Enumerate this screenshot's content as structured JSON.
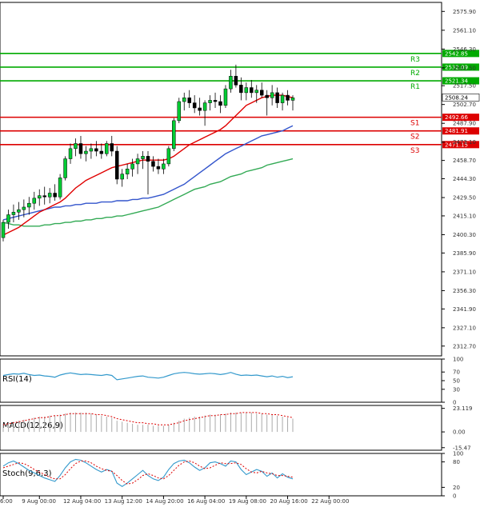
{
  "chart_data": {
    "type": "candlestick",
    "price_axis": {
      "ylim": [
        2305.0,
        2583.0
      ],
      "ticks": [
        "2575.90",
        "2561.10",
        "2546.30",
        "2531.50",
        "2517.50",
        "2502.70",
        "2487.90",
        "2473.10",
        "2458.70",
        "2444.30",
        "2429.50",
        "2415.10",
        "2400.30",
        "2385.90",
        "2371.10",
        "2356.30",
        "2341.90",
        "2327.10",
        "2312.70"
      ],
      "tick_values": [
        2575.9,
        2561.1,
        2546.3,
        2531.5,
        2517.5,
        2502.7,
        2487.9,
        2473.1,
        2458.7,
        2444.3,
        2429.5,
        2415.1,
        2400.3,
        2385.9,
        2371.1,
        2356.3,
        2341.9,
        2327.1,
        2312.7
      ],
      "current_price_label": "2508.24",
      "current_price": 2508.24
    },
    "x_axis": {
      "labels": [
        "6:00",
        "9 Aug 00:00",
        "12 Aug 04:00",
        "13 Aug 12:00",
        "14 Aug 20:00",
        "16 Aug 04:00",
        "19 Aug 08:00",
        "20 Aug 16:00",
        "22 Aug 00:00"
      ],
      "label_indices": [
        0,
        7,
        15,
        23,
        31,
        39,
        47,
        55,
        63
      ]
    },
    "levels": [
      {
        "name": "R3",
        "value": 2542.85,
        "label": "2542.85",
        "color": "#00aa00"
      },
      {
        "name": "R2",
        "value": 2532.09,
        "label": "2532.09",
        "color": "#00aa00"
      },
      {
        "name": "R1",
        "value": 2521.34,
        "label": "2521.34",
        "color": "#00aa00"
      },
      {
        "name": "S1",
        "value": 2492.66,
        "label": "2492.66",
        "color": "#dd0000"
      },
      {
        "name": "S2",
        "value": 2481.91,
        "label": "2481.91",
        "color": "#dd0000"
      },
      {
        "name": "S3",
        "value": 2471.15,
        "label": "2471.15",
        "color": "#dd0000"
      }
    ],
    "candles": [
      {
        "o": 2398,
        "h": 2412,
        "l": 2395,
        "c": 2410
      },
      {
        "o": 2410,
        "h": 2420,
        "l": 2405,
        "c": 2416
      },
      {
        "o": 2416,
        "h": 2424,
        "l": 2410,
        "c": 2418
      },
      {
        "o": 2418,
        "h": 2426,
        "l": 2412,
        "c": 2420
      },
      {
        "o": 2420,
        "h": 2428,
        "l": 2414,
        "c": 2422
      },
      {
        "o": 2422,
        "h": 2430,
        "l": 2416,
        "c": 2425
      },
      {
        "o": 2425,
        "h": 2434,
        "l": 2420,
        "c": 2429
      },
      {
        "o": 2429,
        "h": 2436,
        "l": 2423,
        "c": 2431
      },
      {
        "o": 2431,
        "h": 2438,
        "l": 2424,
        "c": 2430
      },
      {
        "o": 2430,
        "h": 2437,
        "l": 2425,
        "c": 2433
      },
      {
        "o": 2433,
        "h": 2440,
        "l": 2427,
        "c": 2430
      },
      {
        "o": 2430,
        "h": 2448,
        "l": 2428,
        "c": 2445
      },
      {
        "o": 2445,
        "h": 2462,
        "l": 2443,
        "c": 2460
      },
      {
        "o": 2460,
        "h": 2472,
        "l": 2456,
        "c": 2468
      },
      {
        "o": 2468,
        "h": 2476,
        "l": 2462,
        "c": 2472
      },
      {
        "o": 2472,
        "h": 2478,
        "l": 2460,
        "c": 2464
      },
      {
        "o": 2464,
        "h": 2470,
        "l": 2458,
        "c": 2466
      },
      {
        "o": 2466,
        "h": 2472,
        "l": 2460,
        "c": 2468
      },
      {
        "o": 2468,
        "h": 2474,
        "l": 2462,
        "c": 2466
      },
      {
        "o": 2466,
        "h": 2472,
        "l": 2460,
        "c": 2464
      },
      {
        "o": 2464,
        "h": 2474,
        "l": 2462,
        "c": 2472
      },
      {
        "o": 2472,
        "h": 2478,
        "l": 2462,
        "c": 2466
      },
      {
        "o": 2466,
        "h": 2470,
        "l": 2440,
        "c": 2444
      },
      {
        "o": 2444,
        "h": 2452,
        "l": 2438,
        "c": 2448
      },
      {
        "o": 2448,
        "h": 2456,
        "l": 2444,
        "c": 2452
      },
      {
        "o": 2452,
        "h": 2460,
        "l": 2446,
        "c": 2456
      },
      {
        "o": 2456,
        "h": 2464,
        "l": 2448,
        "c": 2460
      },
      {
        "o": 2460,
        "h": 2466,
        "l": 2452,
        "c": 2462
      },
      {
        "o": 2462,
        "h": 2466,
        "l": 2432,
        "c": 2458
      },
      {
        "o": 2458,
        "h": 2462,
        "l": 2450,
        "c": 2454
      },
      {
        "o": 2454,
        "h": 2460,
        "l": 2448,
        "c": 2452
      },
      {
        "o": 2452,
        "h": 2460,
        "l": 2448,
        "c": 2456
      },
      {
        "o": 2456,
        "h": 2470,
        "l": 2454,
        "c": 2468
      },
      {
        "o": 2468,
        "h": 2492,
        "l": 2466,
        "c": 2490
      },
      {
        "o": 2490,
        "h": 2508,
        "l": 2488,
        "c": 2505
      },
      {
        "o": 2505,
        "h": 2512,
        "l": 2498,
        "c": 2508
      },
      {
        "o": 2508,
        "h": 2514,
        "l": 2500,
        "c": 2504
      },
      {
        "o": 2504,
        "h": 2510,
        "l": 2496,
        "c": 2500
      },
      {
        "o": 2500,
        "h": 2508,
        "l": 2494,
        "c": 2498
      },
      {
        "o": 2498,
        "h": 2506,
        "l": 2486,
        "c": 2504
      },
      {
        "o": 2504,
        "h": 2510,
        "l": 2498,
        "c": 2506
      },
      {
        "o": 2506,
        "h": 2512,
        "l": 2500,
        "c": 2505
      },
      {
        "o": 2505,
        "h": 2510,
        "l": 2496,
        "c": 2502
      },
      {
        "o": 2502,
        "h": 2518,
        "l": 2500,
        "c": 2515
      },
      {
        "o": 2515,
        "h": 2530,
        "l": 2512,
        "c": 2525
      },
      {
        "o": 2525,
        "h": 2534,
        "l": 2516,
        "c": 2518
      },
      {
        "o": 2518,
        "h": 2524,
        "l": 2506,
        "c": 2512
      },
      {
        "o": 2512,
        "h": 2520,
        "l": 2506,
        "c": 2516
      },
      {
        "o": 2516,
        "h": 2522,
        "l": 2508,
        "c": 2512
      },
      {
        "o": 2512,
        "h": 2518,
        "l": 2504,
        "c": 2514
      },
      {
        "o": 2514,
        "h": 2520,
        "l": 2508,
        "c": 2510
      },
      {
        "o": 2510,
        "h": 2514,
        "l": 2494,
        "c": 2508
      },
      {
        "o": 2508,
        "h": 2518,
        "l": 2502,
        "c": 2512
      },
      {
        "o": 2512,
        "h": 2516,
        "l": 2500,
        "c": 2504
      },
      {
        "o": 2504,
        "h": 2512,
        "l": 2498,
        "c": 2510
      },
      {
        "o": 2510,
        "h": 2514,
        "l": 2502,
        "c": 2506
      },
      {
        "o": 2506,
        "h": 2510,
        "l": 2498,
        "c": 2508
      }
    ],
    "ma_fast": {
      "color": "#e00000",
      "values": [
        2400,
        2402,
        2404,
        2406,
        2409,
        2412,
        2415,
        2418,
        2420,
        2422,
        2424,
        2426,
        2429,
        2433,
        2437,
        2440,
        2443,
        2445,
        2447,
        2449,
        2451,
        2453,
        2454,
        2455,
        2456,
        2457,
        2458,
        2459,
        2459,
        2459,
        2459,
        2459,
        2460,
        2462,
        2465,
        2468,
        2471,
        2473,
        2475,
        2477,
        2479,
        2481,
        2483,
        2486,
        2490,
        2494,
        2498,
        2502,
        2504,
        2506,
        2508,
        2509,
        2510,
        2510,
        2510,
        2509,
        2508
      ]
    },
    "ma_mid": {
      "color": "#3355cc",
      "values": [
        2412,
        2413,
        2414,
        2415,
        2416,
        2417,
        2418,
        2419,
        2420,
        2421,
        2422,
        2422,
        2423,
        2423,
        2424,
        2424,
        2425,
        2425,
        2425,
        2426,
        2426,
        2426,
        2427,
        2427,
        2427,
        2428,
        2428,
        2429,
        2429,
        2430,
        2431,
        2432,
        2434,
        2436,
        2438,
        2440,
        2443,
        2446,
        2449,
        2452,
        2455,
        2458,
        2461,
        2464,
        2466,
        2468,
        2470,
        2472,
        2474,
        2476,
        2478,
        2479,
        2480,
        2481,
        2482,
        2484,
        2486
      ]
    },
    "ma_slow": {
      "color": "#33aa55",
      "values": [
        2410,
        2409,
        2408,
        2408,
        2407,
        2407,
        2407,
        2407,
        2408,
        2408,
        2409,
        2409,
        2410,
        2410,
        2411,
        2411,
        2412,
        2412,
        2413,
        2413,
        2414,
        2414,
        2415,
        2415,
        2416,
        2417,
        2418,
        2419,
        2420,
        2421,
        2422,
        2424,
        2426,
        2428,
        2430,
        2432,
        2434,
        2436,
        2437,
        2438,
        2440,
        2441,
        2442,
        2444,
        2446,
        2447,
        2448,
        2450,
        2451,
        2452,
        2453,
        2455,
        2456,
        2457,
        2458,
        2459,
        2460
      ]
    },
    "rsi": {
      "label": "RSI(14)",
      "ylim": [
        0,
        100
      ],
      "ticks": [
        "100",
        "70",
        "50",
        "30",
        "0"
      ],
      "tick_values": [
        100,
        70,
        50,
        30,
        0
      ],
      "values": [
        62,
        64,
        66,
        65,
        67,
        64,
        62,
        63,
        61,
        60,
        58,
        63,
        66,
        68,
        66,
        64,
        65,
        64,
        63,
        62,
        64,
        62,
        52,
        54,
        56,
        58,
        60,
        61,
        58,
        57,
        56,
        58,
        62,
        66,
        68,
        69,
        68,
        66,
        65,
        66,
        67,
        66,
        64,
        66,
        69,
        65,
        62,
        63,
        62,
        63,
        61,
        59,
        61,
        58,
        60,
        57,
        59
      ],
      "color": "#3399cc"
    },
    "macd": {
      "label": "MACD(12,26,9)",
      "ylim": [
        -18.0,
        26.0
      ],
      "ticks": [
        "23.119",
        "0.00",
        "-15.47"
      ],
      "tick_values": [
        23.119,
        0.0,
        -15.47
      ],
      "histogram": [
        8,
        9,
        10,
        11,
        12,
        13,
        14,
        15,
        15,
        16,
        16,
        17,
        18,
        19,
        19,
        19,
        19,
        18,
        17,
        16,
        15,
        14,
        11,
        10,
        9,
        8,
        7,
        7,
        7,
        6,
        6,
        6,
        7,
        9,
        11,
        13,
        14,
        15,
        15,
        16,
        17,
        17,
        17,
        18,
        19,
        19,
        19,
        19,
        19,
        18,
        18,
        17,
        17,
        16,
        15,
        14,
        13
      ],
      "signal": [
        7,
        8,
        9,
        10,
        11,
        12,
        13,
        14,
        14,
        15,
        16,
        16,
        17,
        18,
        18,
        18,
        18,
        18,
        17,
        17,
        16,
        15,
        13,
        12,
        11,
        10,
        9,
        9,
        8,
        8,
        7,
        7,
        7,
        8,
        9,
        11,
        12,
        13,
        14,
        15,
        16,
        16,
        17,
        17,
        18,
        18,
        19,
        19,
        19,
        19,
        18,
        18,
        17,
        17,
        16,
        15,
        14
      ],
      "signal_color": "#dd0000",
      "hist_color": "#aaaaaa"
    },
    "stoch": {
      "label": "Stoch(9,6,3)",
      "ylim": [
        0,
        100
      ],
      "ticks": [
        "100",
        "80",
        "20",
        "0"
      ],
      "tick_values": [
        100,
        80,
        20,
        0
      ],
      "k": [
        70,
        78,
        82,
        76,
        68,
        60,
        54,
        48,
        42,
        38,
        34,
        48,
        66,
        80,
        86,
        84,
        78,
        70,
        62,
        56,
        62,
        58,
        30,
        22,
        30,
        40,
        50,
        60,
        48,
        40,
        36,
        44,
        62,
        76,
        82,
        84,
        78,
        68,
        60,
        66,
        78,
        80,
        76,
        70,
        82,
        80,
        62,
        50,
        56,
        62,
        58,
        46,
        54,
        42,
        52,
        44,
        40
      ],
      "d": [
        66,
        70,
        74,
        78,
        76,
        70,
        62,
        56,
        50,
        44,
        40,
        40,
        50,
        64,
        76,
        82,
        82,
        78,
        70,
        64,
        60,
        58,
        48,
        36,
        28,
        30,
        38,
        48,
        52,
        48,
        42,
        40,
        48,
        60,
        72,
        80,
        82,
        78,
        70,
        64,
        66,
        72,
        78,
        76,
        76,
        78,
        74,
        64,
        56,
        54,
        58,
        54,
        52,
        48,
        48,
        46,
        44
      ],
      "k_color": "#3399cc",
      "d_color": "#dd0000"
    }
  }
}
